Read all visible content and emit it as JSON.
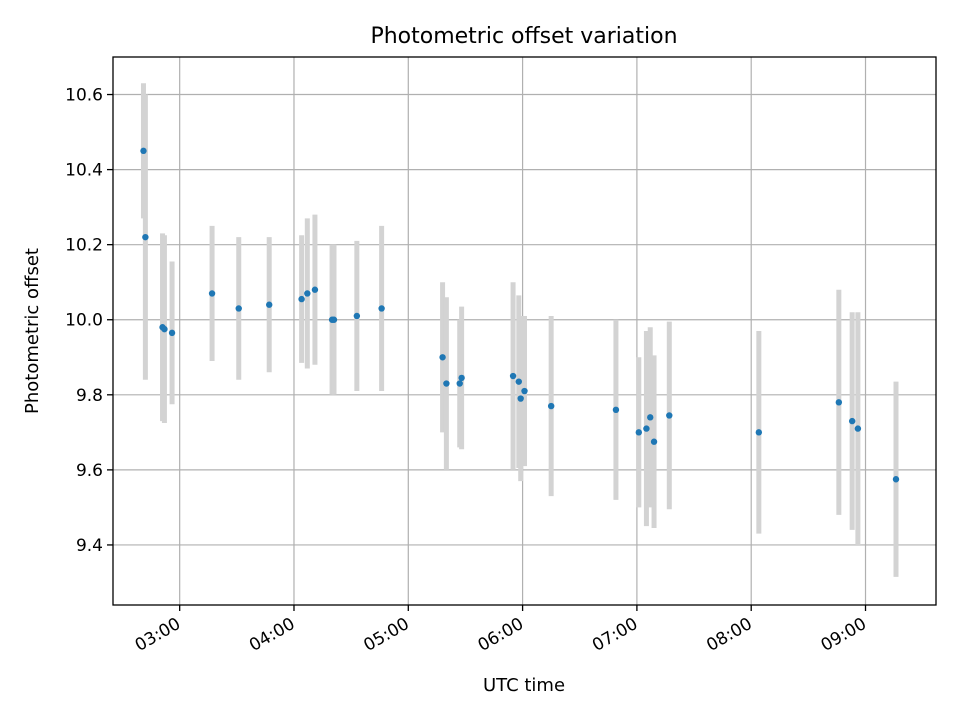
{
  "chart_data": {
    "type": "scatter",
    "title": "Photometric offset variation",
    "xlabel": "UTC time",
    "ylabel": "Photometric offset",
    "x_unit": "UTC time of day",
    "xlim": [
      "02:25",
      "09:37"
    ],
    "ylim": [
      9.24,
      10.7
    ],
    "x_ticks": [
      "03:00",
      "04:00",
      "05:00",
      "06:00",
      "07:00",
      "08:00",
      "09:00"
    ],
    "y_ticks": [
      9.4,
      9.6,
      9.8,
      10.0,
      10.2,
      10.4,
      10.6
    ],
    "y_tick_labels": [
      "9.4",
      "9.6",
      "9.8",
      "10.0",
      "10.2",
      "10.4",
      "10.6"
    ],
    "grid": true,
    "colors": {
      "points": "#1f77b4",
      "errorbars": "#d3d3d3",
      "grid": "#b0b0b0"
    },
    "points": [
      {
        "x": "02:41",
        "y": 10.45,
        "err": 0.18
      },
      {
        "x": "02:42",
        "y": 10.22,
        "err": 0.38
      },
      {
        "x": "02:51",
        "y": 9.98,
        "err": 0.25
      },
      {
        "x": "02:52",
        "y": 9.975,
        "err": 0.25
      },
      {
        "x": "02:56",
        "y": 9.965,
        "err": 0.19
      },
      {
        "x": "03:17",
        "y": 10.07,
        "err": 0.18
      },
      {
        "x": "03:31",
        "y": 10.03,
        "err": 0.19
      },
      {
        "x": "03:47",
        "y": 10.04,
        "err": 0.18
      },
      {
        "x": "04:04",
        "y": 10.055,
        "err": 0.17
      },
      {
        "x": "04:07",
        "y": 10.07,
        "err": 0.2
      },
      {
        "x": "04:11",
        "y": 10.08,
        "err": 0.2
      },
      {
        "x": "04:20",
        "y": 10.0,
        "err": 0.2
      },
      {
        "x": "04:21",
        "y": 10.0,
        "err": 0.2
      },
      {
        "x": "04:33",
        "y": 10.01,
        "err": 0.2
      },
      {
        "x": "04:46",
        "y": 10.03,
        "err": 0.22
      },
      {
        "x": "05:18",
        "y": 9.9,
        "err": 0.2
      },
      {
        "x": "05:20",
        "y": 9.83,
        "err": 0.23
      },
      {
        "x": "05:27",
        "y": 9.83,
        "err": 0.17
      },
      {
        "x": "05:28",
        "y": 9.845,
        "err": 0.19
      },
      {
        "x": "05:55",
        "y": 9.85,
        "err": 0.25
      },
      {
        "x": "05:58",
        "y": 9.835,
        "err": 0.23
      },
      {
        "x": "05:59",
        "y": 9.79,
        "err": 0.22
      },
      {
        "x": "06:01",
        "y": 9.81,
        "err": 0.2
      },
      {
        "x": "06:15",
        "y": 9.77,
        "err": 0.24
      },
      {
        "x": "06:49",
        "y": 9.76,
        "err": 0.24
      },
      {
        "x": "07:01",
        "y": 9.7,
        "err": 0.2
      },
      {
        "x": "07:05",
        "y": 9.71,
        "err": 0.26
      },
      {
        "x": "07:07",
        "y": 9.74,
        "err": 0.24
      },
      {
        "x": "07:09",
        "y": 9.675,
        "err": 0.23
      },
      {
        "x": "07:17",
        "y": 9.745,
        "err": 0.25
      },
      {
        "x": "08:04",
        "y": 9.7,
        "err": 0.27
      },
      {
        "x": "08:46",
        "y": 9.78,
        "err": 0.3
      },
      {
        "x": "08:53",
        "y": 9.73,
        "err": 0.29
      },
      {
        "x": "08:56",
        "y": 9.71,
        "err": 0.31
      },
      {
        "x": "09:16",
        "y": 9.575,
        "err": 0.26
      }
    ]
  }
}
